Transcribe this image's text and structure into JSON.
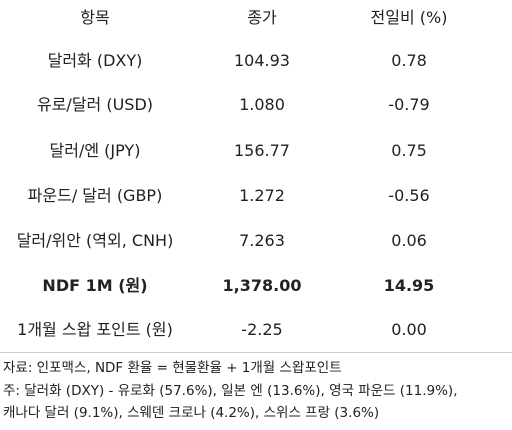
{
  "table": {
    "header": [
      "항목",
      "종가",
      "전일비 (%)"
    ],
    "rows": [
      [
        "달러화 (DXY)",
        "104.93",
        "0.78"
      ],
      [
        "유로/달러 (USD)",
        "1.080",
        "-0.79"
      ],
      [
        "달러/엔 (JPY)",
        "156.77",
        "0.75"
      ],
      [
        "파운드/ 달러 (GBP)",
        "1.272",
        "-0.56"
      ],
      [
        "달러/위안 (역외, CNH)",
        "7.263",
        "0.06"
      ],
      [
        "NDF 1M (원)",
        "1,378.00",
        "14.95"
      ],
      [
        "1개월 스왑 포인트 (원)",
        "-2.25",
        "0.00"
      ]
    ]
  },
  "notes": [
    "자료: 인포맥스, NDF 환율 = 현물환율 + 1개월 스왑포인트",
    "주: 달러화 (DXY) - 유로화 (57.6%), 일본 엔 (13.6%), 영국 파운드 (11.9%),",
    "캐나다 달러 (9.1%), 스웨덴 크로나 (4.2%), 스위스 프랑 (3.6%)"
  ]
}
